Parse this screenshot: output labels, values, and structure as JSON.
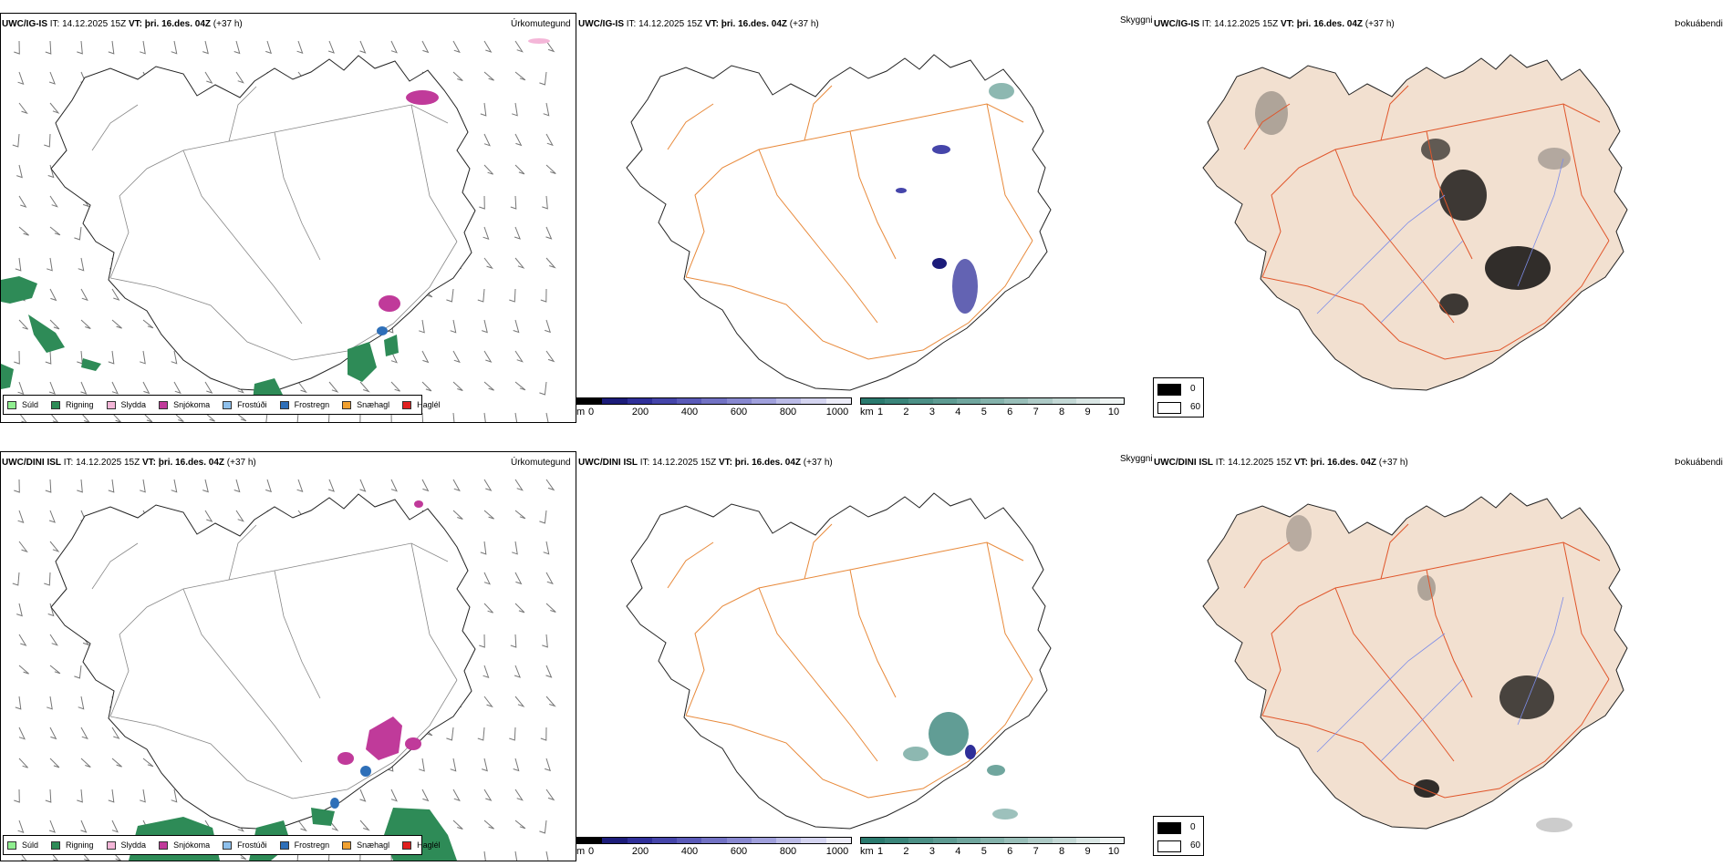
{
  "rows": [
    {
      "model": "UWC/IG-IS",
      "it_label": "IT:",
      "it_value": "14.12.2025 15Z",
      "vt_label": "VT:",
      "vt_value": "þri. 16.des. 04Z",
      "lead": "(+37 h)"
    },
    {
      "model": "UWC/DINI ISL",
      "it_label": "IT:",
      "it_value": "14.12.2025 15Z",
      "vt_label": "VT:",
      "vt_value": "þri. 16.des. 04Z",
      "lead": "(+37 h)"
    }
  ],
  "panel_titles": {
    "precip": "Úrkomutegund",
    "visibility": "Skyggni",
    "fog": "Þokuábendi"
  },
  "precip_legend": [
    {
      "label": "Súld",
      "color": "#90ee90"
    },
    {
      "label": "Rigning",
      "color": "#2e8b57"
    },
    {
      "label": "Slydda",
      "color": "#f4b6d8"
    },
    {
      "label": "Snjókoma",
      "color": "#c03a9a"
    },
    {
      "label": "Frostúði",
      "color": "#8ec0ec"
    },
    {
      "label": "Frostregn",
      "color": "#2e6fb8"
    },
    {
      "label": "Snæhagl",
      "color": "#f0a030"
    },
    {
      "label": "Haglél",
      "color": "#e02020"
    }
  ],
  "cloud_base_scale": {
    "unit": "m",
    "ticks": [
      "0",
      "200",
      "400",
      "600",
      "800",
      "1000"
    ],
    "colors": [
      "#000000",
      "#1c1c7a",
      "#2f2f99",
      "#4545aa",
      "#5a5ab8",
      "#7272c4",
      "#8888d0",
      "#a0a0dc",
      "#babae6",
      "#d4d4f0",
      "#ececf8"
    ]
  },
  "visibility_scale": {
    "unit": "km",
    "ticks": [
      "1",
      "2",
      "3",
      "4",
      "5",
      "6",
      "7",
      "8",
      "9",
      "10"
    ],
    "colors": [
      "#2a7a6e",
      "#3a857a",
      "#4c9086",
      "#5e9b92",
      "#70a69e",
      "#84b2ab",
      "#98beb8",
      "#adcac6",
      "#c3d8d5",
      "#d9e6e4",
      "#eef4f3"
    ]
  },
  "fog_legend": [
    {
      "label": "0",
      "color": "#000000"
    },
    {
      "label": "60",
      "color": "#ffffff"
    }
  ]
}
